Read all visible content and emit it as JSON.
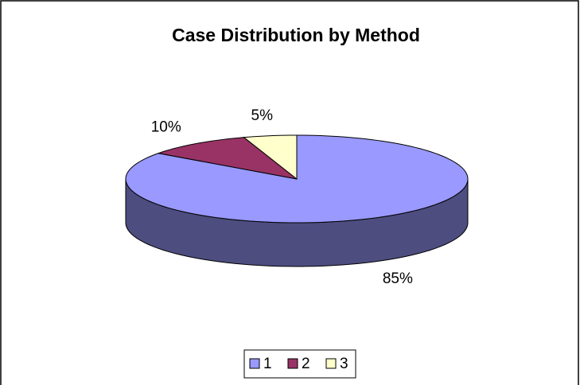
{
  "chart_data": {
    "type": "pie",
    "title": "Case Distribution by Method",
    "categories": [
      "1",
      "2",
      "3"
    ],
    "values": [
      85,
      10,
      5
    ],
    "value_labels": [
      "85%",
      "10%",
      "5%"
    ],
    "colors": [
      "#9999ff",
      "#993366",
      "#ffffcc"
    ],
    "legend": "bottom"
  }
}
